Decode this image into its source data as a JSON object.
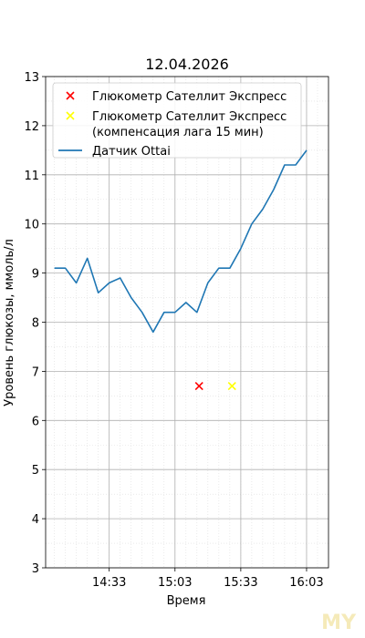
{
  "chart_data": {
    "type": "line",
    "title": "12.04.2026",
    "xlabel": "Время",
    "ylabel": "Уровень глюкозы, ммоль/л",
    "xlim": [
      "14:04",
      "16:13"
    ],
    "ylim": [
      3,
      13
    ],
    "x_ticks": [
      "14:33",
      "15:03",
      "15:33",
      "16:03"
    ],
    "y_ticks": [
      3,
      4,
      5,
      6,
      7,
      8,
      9,
      10,
      11,
      12,
      13
    ],
    "grid": true,
    "legend_position": "top-left",
    "series": [
      {
        "name": "Глюкометр Сателлит Экспресс",
        "type": "scatter",
        "marker": "x",
        "color": "#ff0000",
        "points": [
          {
            "x": "15:14",
            "y": 6.7
          }
        ]
      },
      {
        "name": "Глюкометр Сателлит Экспресс (компенсация лага 15 мин)",
        "legend_lines": [
          "Глюкометр Сателлит Экспресс",
          "(компенсация лага 15 мин)"
        ],
        "type": "scatter",
        "marker": "x",
        "color": "#ffff00",
        "points": [
          {
            "x": "15:29",
            "y": 6.7
          }
        ]
      },
      {
        "name": "Датчик Ottai",
        "type": "line",
        "color": "#1f77b4",
        "points": [
          {
            "x": "14:08",
            "y": 9.1
          },
          {
            "x": "14:13",
            "y": 9.1
          },
          {
            "x": "14:18",
            "y": 8.8
          },
          {
            "x": "14:23",
            "y": 9.3
          },
          {
            "x": "14:28",
            "y": 8.6
          },
          {
            "x": "14:33",
            "y": 8.8
          },
          {
            "x": "14:38",
            "y": 8.9
          },
          {
            "x": "14:43",
            "y": 8.5
          },
          {
            "x": "14:48",
            "y": 8.2
          },
          {
            "x": "14:53",
            "y": 7.8
          },
          {
            "x": "14:58",
            "y": 8.2
          },
          {
            "x": "15:03",
            "y": 8.2
          },
          {
            "x": "15:08",
            "y": 8.4
          },
          {
            "x": "15:13",
            "y": 8.2
          },
          {
            "x": "15:18",
            "y": 8.8
          },
          {
            "x": "15:23",
            "y": 9.1
          },
          {
            "x": "15:28",
            "y": 9.1
          },
          {
            "x": "15:33",
            "y": 9.5
          },
          {
            "x": "15:38",
            "y": 10.0
          },
          {
            "x": "15:43",
            "y": 10.3
          },
          {
            "x": "15:48",
            "y": 10.7
          },
          {
            "x": "15:53",
            "y": 11.2
          },
          {
            "x": "15:58",
            "y": 11.2
          },
          {
            "x": "16:03",
            "y": 11.5
          }
        ]
      }
    ]
  },
  "watermark": "MY"
}
